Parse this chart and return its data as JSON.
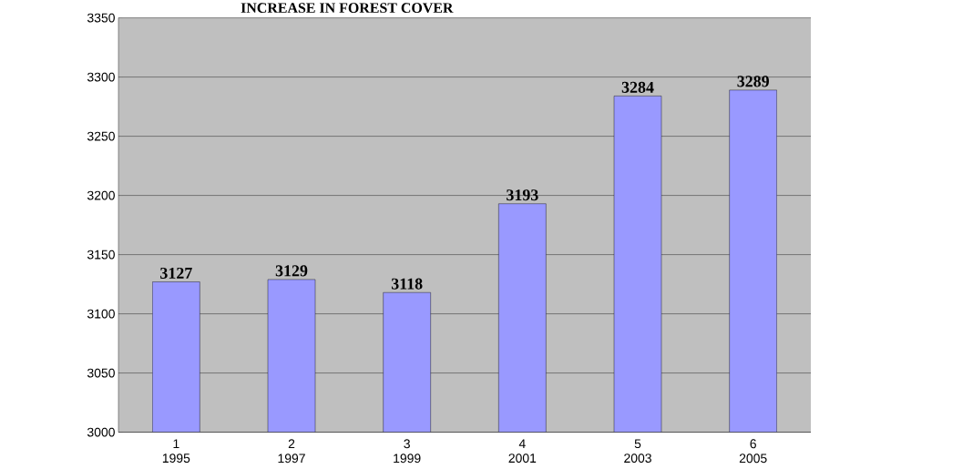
{
  "chart_data": {
    "type": "bar",
    "title": "INCREASE IN FOREST COVER",
    "categories": [
      "1 1995",
      "2 1997",
      "3 1999",
      "4 2001",
      "5 2003",
      "6 2005"
    ],
    "values": [
      3127,
      3129,
      3118,
      3193,
      3284,
      3289
    ],
    "color": "#9999ff",
    "ylim": [
      3000,
      3350
    ],
    "yticks": [
      3000,
      3050,
      3100,
      3150,
      3200,
      3250,
      3300,
      3350
    ],
    "grid": "y",
    "data_labels": true
  }
}
